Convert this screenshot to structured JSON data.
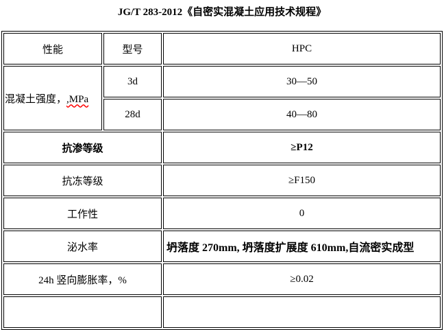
{
  "doc": {
    "title": "JG/T 283-2012《自密实混凝土应用技术规程》"
  },
  "colors": {
    "border": "#000000",
    "text": "#000000",
    "spellcheck_underline": "#ff0000",
    "background": "#ffffff"
  },
  "table": {
    "header": {
      "performance": "性能",
      "model": "型号",
      "product": "HPC"
    },
    "strength": {
      "label": "混凝土强度，",
      "unit_misspelled": ",MPa",
      "ages": [
        {
          "age": "3d",
          "value": "30—50"
        },
        {
          "age": "28d",
          "value": "40—80"
        }
      ]
    },
    "rows": [
      {
        "label": "抗渗等级",
        "value": "≥P12"
      },
      {
        "label": "抗冻等级",
        "value": "≥F150"
      },
      {
        "label": "工作性",
        "value": "0"
      },
      {
        "label": "泌水率",
        "value": "坍落度 270mm, 坍落度扩展度 610mm,自流密实成型"
      },
      {
        "label": "24h 竖向膨胀率，%",
        "value": "≥0.02"
      }
    ]
  }
}
